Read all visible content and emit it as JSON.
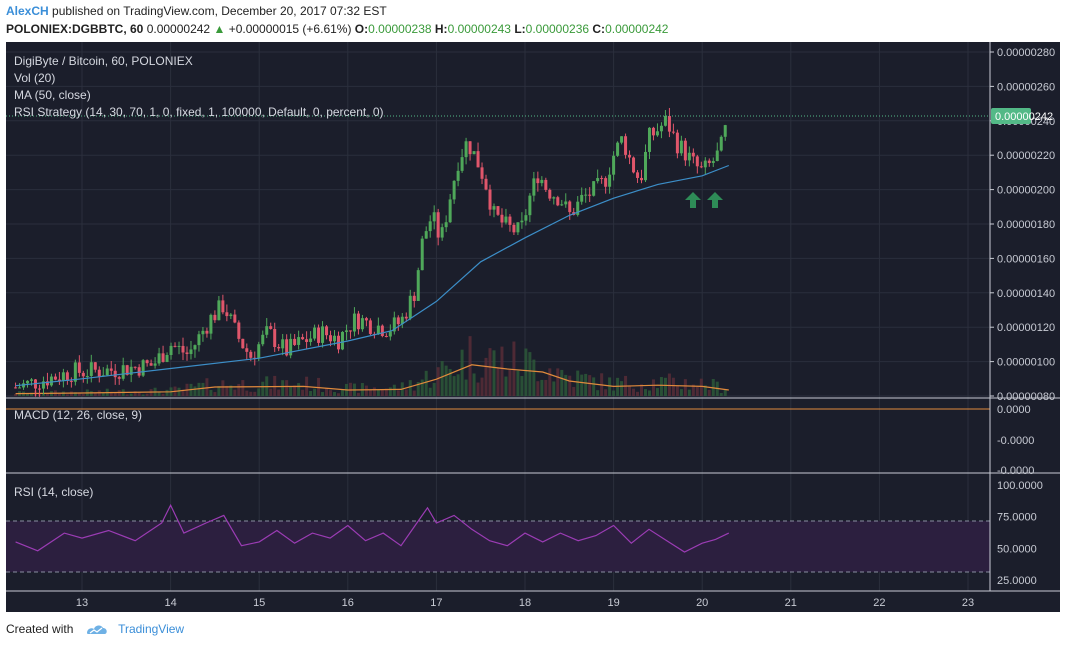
{
  "header": {
    "author": "AlexCH",
    "published_text": "published on TradingView.com, December 20, 2017 07:32 EST",
    "symbol": "POLONIEX:DGBBTC, 60",
    "last_price": "0.00000242",
    "change_arrow": "▲",
    "change": "+0.00000015 (+6.61%)",
    "open_label": "O:",
    "open_value": "0.00000238",
    "high_label": "H:",
    "high_value": "0.00000243",
    "low_label": "L:",
    "low_value": "0.00000236",
    "close_label": "C:",
    "close_value": "0.00000242"
  },
  "legend": {
    "title": "DigiByte / Bitcoin, 60, POLONIEX",
    "vol": "Vol (20)",
    "ma": "MA (50, close)",
    "strategy": "RSI Strategy (14, 30, 70, 1, 0, fixed, 1, 100000, Default, 0, percent, 0)"
  },
  "colors": {
    "background": "#1b1e2b",
    "grid": "#2b2f3d",
    "up": "#4fa85a",
    "down": "#e0566b",
    "ma": "#3c8ec8",
    "vol_ma": "#e08a3c",
    "rsi": "#9b3cb4",
    "rsi_band": "#2c1f3f",
    "arrow": "#2e8b57",
    "price_label_bg": "#53b987"
  },
  "macd_label": "MACD (12, 26, close, 9)",
  "rsi_label": "RSI (14, close)",
  "footer": {
    "created_with": "Created with",
    "brand": "TradingView"
  },
  "chart_data": [
    {
      "type": "candlestick",
      "title": "DigiByte / Bitcoin, 60, POLONIEX",
      "x_ticks": [
        "13",
        "14",
        "15",
        "16",
        "17",
        "18",
        "19",
        "20",
        "21",
        "22",
        "23"
      ],
      "y_ticks": [
        "0.00000280",
        "0.00000260",
        "0.00000240",
        "0.00000220",
        "0.00000200",
        "0.00000180",
        "0.00000160",
        "0.00000140",
        "0.00000120",
        "0.00000100",
        "0.00000080"
      ],
      "ylim": [
        8e-07,
        2.8e-06
      ],
      "last_price_label": "0.00000242",
      "close_path": [
        [
          12.25,
          8.5e-07
        ],
        [
          12.6,
          9e-07
        ],
        [
          12.9,
          9.4e-07
        ],
        [
          13.3,
          9.5e-07
        ],
        [
          13.8,
          9.8e-07
        ],
        [
          14.0,
          1.1e-06
        ],
        [
          14.2,
          1.04e-06
        ],
        [
          14.45,
          1.25e-06
        ],
        [
          14.6,
          1.33e-06
        ],
        [
          14.75,
          1.15e-06
        ],
        [
          14.9,
          1.03e-06
        ],
        [
          15.1,
          1.17e-06
        ],
        [
          15.3,
          1.06e-06
        ],
        [
          15.5,
          1.12e-06
        ],
        [
          15.7,
          1.17e-06
        ],
        [
          15.9,
          1.13e-06
        ],
        [
          16.0,
          1.2e-06
        ],
        [
          16.1,
          1.25e-06
        ],
        [
          16.25,
          1.22e-06
        ],
        [
          16.45,
          1.19e-06
        ],
        [
          16.6,
          1.23e-06
        ],
        [
          16.75,
          1.4e-06
        ],
        [
          16.85,
          1.72e-06
        ],
        [
          16.95,
          1.85e-06
        ],
        [
          17.05,
          1.7e-06
        ],
        [
          17.15,
          1.95e-06
        ],
        [
          17.25,
          2.18e-06
        ],
        [
          17.35,
          2.28e-06
        ],
        [
          17.45,
          2.18e-06
        ],
        [
          17.55,
          2.05e-06
        ],
        [
          17.65,
          1.85e-06
        ],
        [
          17.8,
          1.78e-06
        ],
        [
          17.95,
          1.75e-06
        ],
        [
          18.05,
          1.95e-06
        ],
        [
          18.15,
          2.1e-06
        ],
        [
          18.25,
          2e-06
        ],
        [
          18.4,
          1.95e-06
        ],
        [
          18.5,
          1.85e-06
        ],
        [
          18.65,
          1.95e-06
        ],
        [
          18.8,
          2e-06
        ],
        [
          18.9,
          2.05e-06
        ],
        [
          19.0,
          2.2e-06
        ],
        [
          19.1,
          2.3e-06
        ],
        [
          19.2,
          2.15e-06
        ],
        [
          19.3,
          2.05e-06
        ],
        [
          19.4,
          2.3e-06
        ],
        [
          19.5,
          2.35e-06
        ],
        [
          19.6,
          2.4e-06
        ],
        [
          19.7,
          2.28e-06
        ],
        [
          19.8,
          2.22e-06
        ],
        [
          19.9,
          2.15e-06
        ],
        [
          20.0,
          2.1e-06
        ],
        [
          20.1,
          2.15e-06
        ],
        [
          20.2,
          2.22e-06
        ],
        [
          20.3,
          2.42e-06
        ]
      ],
      "ma_path": [
        [
          12.25,
          8.6e-07
        ],
        [
          13.0,
          9e-07
        ],
        [
          14.0,
          9.6e-07
        ],
        [
          15.0,
          1.02e-06
        ],
        [
          16.0,
          1.12e-06
        ],
        [
          16.5,
          1.18e-06
        ],
        [
          17.0,
          1.35e-06
        ],
        [
          17.5,
          1.58e-06
        ],
        [
          18.0,
          1.72e-06
        ],
        [
          18.5,
          1.85e-06
        ],
        [
          19.0,
          1.95e-06
        ],
        [
          19.5,
          2.03e-06
        ],
        [
          20.0,
          2.08e-06
        ],
        [
          20.3,
          2.14e-06
        ]
      ],
      "vol_ma_path": [
        [
          12.25,
          0.04
        ],
        [
          13.0,
          0.05
        ],
        [
          14.0,
          0.07
        ],
        [
          14.5,
          0.15
        ],
        [
          15.5,
          0.16
        ],
        [
          16.0,
          0.1
        ],
        [
          16.6,
          0.11
        ],
        [
          17.0,
          0.28
        ],
        [
          17.4,
          0.52
        ],
        [
          17.8,
          0.45
        ],
        [
          18.2,
          0.4
        ],
        [
          18.5,
          0.25
        ],
        [
          19.0,
          0.16
        ],
        [
          19.5,
          0.18
        ],
        [
          20.0,
          0.16
        ],
        [
          20.3,
          0.1
        ]
      ]
    },
    {
      "type": "line",
      "title": "MACD (12, 26, close, 9)",
      "y_ticks": [
        "0.0000",
        "-0.0000",
        "-0.0000"
      ]
    },
    {
      "type": "line",
      "title": "RSI (14, close)",
      "y_ticks": [
        "100.0000",
        "75.0000",
        "50.0000",
        "25.0000"
      ],
      "ylim": [
        17,
        100
      ],
      "bands": [
        30,
        70
      ],
      "path": [
        [
          12.25,
          55
        ],
        [
          12.5,
          48
        ],
        [
          12.8,
          62
        ],
        [
          13.0,
          58
        ],
        [
          13.3,
          64
        ],
        [
          13.6,
          56
        ],
        [
          13.9,
          70
        ],
        [
          14.0,
          84
        ],
        [
          14.15,
          62
        ],
        [
          14.4,
          70
        ],
        [
          14.6,
          76
        ],
        [
          14.8,
          52
        ],
        [
          15.0,
          55
        ],
        [
          15.2,
          64
        ],
        [
          15.4,
          54
        ],
        [
          15.6,
          62
        ],
        [
          15.8,
          58
        ],
        [
          16.0,
          68
        ],
        [
          16.2,
          56
        ],
        [
          16.4,
          62
        ],
        [
          16.6,
          52
        ],
        [
          16.8,
          72
        ],
        [
          16.9,
          82
        ],
        [
          17.0,
          70
        ],
        [
          17.2,
          76
        ],
        [
          17.4,
          65
        ],
        [
          17.6,
          56
        ],
        [
          17.8,
          52
        ],
        [
          18.0,
          62
        ],
        [
          18.2,
          55
        ],
        [
          18.4,
          62
        ],
        [
          18.6,
          56
        ],
        [
          18.8,
          60
        ],
        [
          19.0,
          68
        ],
        [
          19.2,
          54
        ],
        [
          19.4,
          65
        ],
        [
          19.6,
          56
        ],
        [
          19.8,
          47
        ],
        [
          20.0,
          54
        ],
        [
          20.15,
          57
        ],
        [
          20.3,
          62
        ]
      ]
    }
  ]
}
